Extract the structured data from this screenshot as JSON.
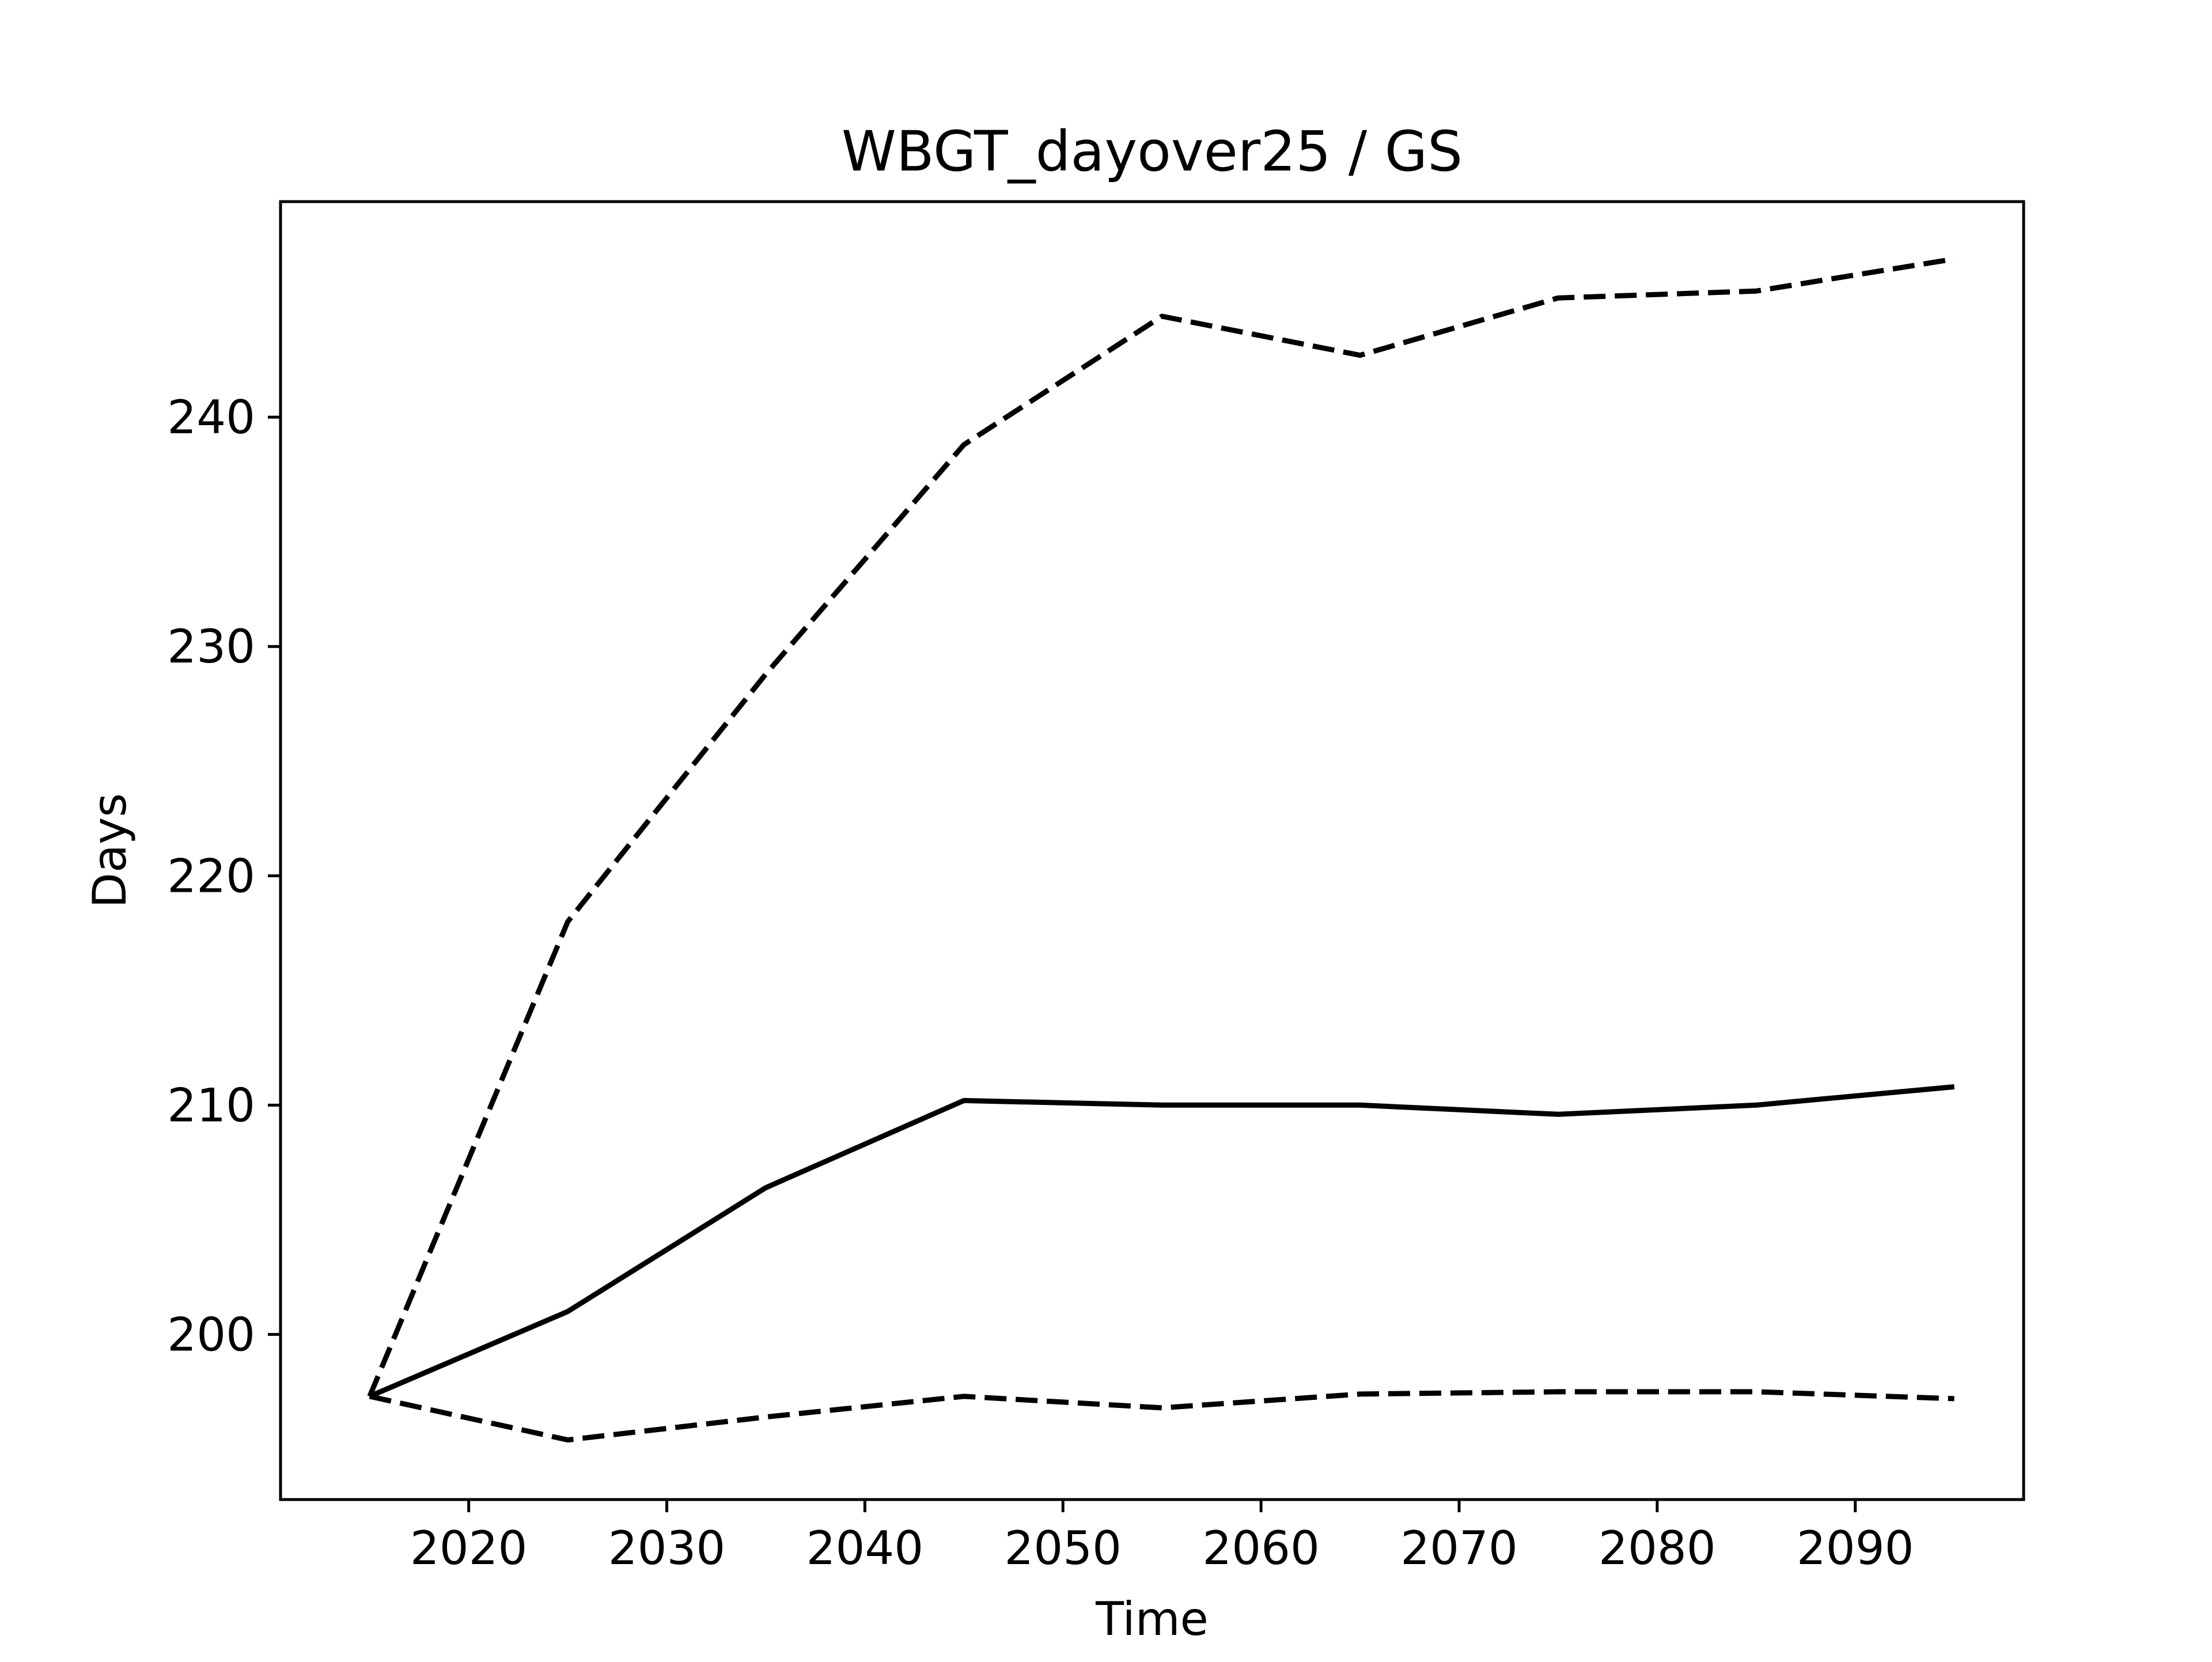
{
  "chart_data": {
    "type": "line",
    "title": "WBGT_dayover25 / GS",
    "xlabel": "Time",
    "ylabel": "Days",
    "xlim": [
      2010.5,
      2098.5
    ],
    "ylim": [
      192.8,
      249.4
    ],
    "xticks": [
      2020,
      2030,
      2040,
      2050,
      2060,
      2070,
      2080,
      2090
    ],
    "yticks": [
      200,
      210,
      220,
      230,
      240
    ],
    "grid": false,
    "legend": "none",
    "x": [
      2015,
      2025,
      2035,
      2045,
      2055,
      2065,
      2075,
      2085,
      2095
    ],
    "series": [
      {
        "style": "solid",
        "color": "#000000",
        "values": [
          197.3,
          201.0,
          206.4,
          210.2,
          210.0,
          210.0,
          209.6,
          210.0,
          210.8
        ]
      },
      {
        "style": "dashed",
        "color": "#000000",
        "values": [
          197.3,
          218.0,
          228.8,
          238.8,
          244.4,
          242.7,
          245.2,
          245.5,
          246.9
        ]
      },
      {
        "style": "dashed",
        "color": "#000000",
        "values": [
          197.3,
          195.4,
          196.4,
          197.3,
          196.8,
          197.4,
          197.5,
          197.5,
          197.2
        ]
      }
    ]
  }
}
